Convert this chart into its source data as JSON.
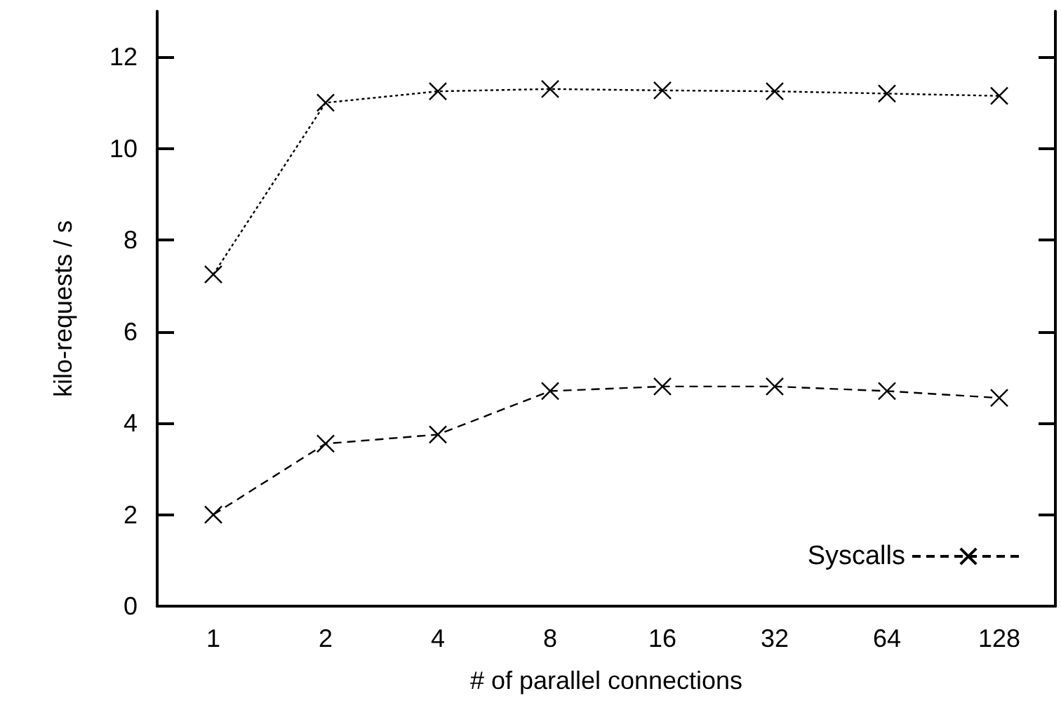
{
  "chart_data": {
    "type": "line",
    "xlabel": "# of parallel connections",
    "ylabel": "kilo-requests / s",
    "categories": [
      "1",
      "2",
      "4",
      "8",
      "16",
      "32",
      "64",
      "128"
    ],
    "series": [
      {
        "name": "Syscalls",
        "color": "#000000",
        "line_style": "dashed",
        "values": [
          2.0,
          3.55,
          3.75,
          4.7,
          4.8,
          4.8,
          4.7,
          4.55
        ]
      },
      {
        "color": "#000000",
        "line_style": "dotted",
        "values": [
          7.25,
          11.0,
          11.25,
          11.3,
          11.27,
          11.25,
          11.2,
          11.15
        ]
      }
    ],
    "ylim": [
      0,
      13
    ],
    "yticks": [
      0,
      2,
      4,
      6,
      8,
      10,
      12
    ],
    "marker": "cross",
    "grid": false,
    "legend": "bottom right"
  }
}
